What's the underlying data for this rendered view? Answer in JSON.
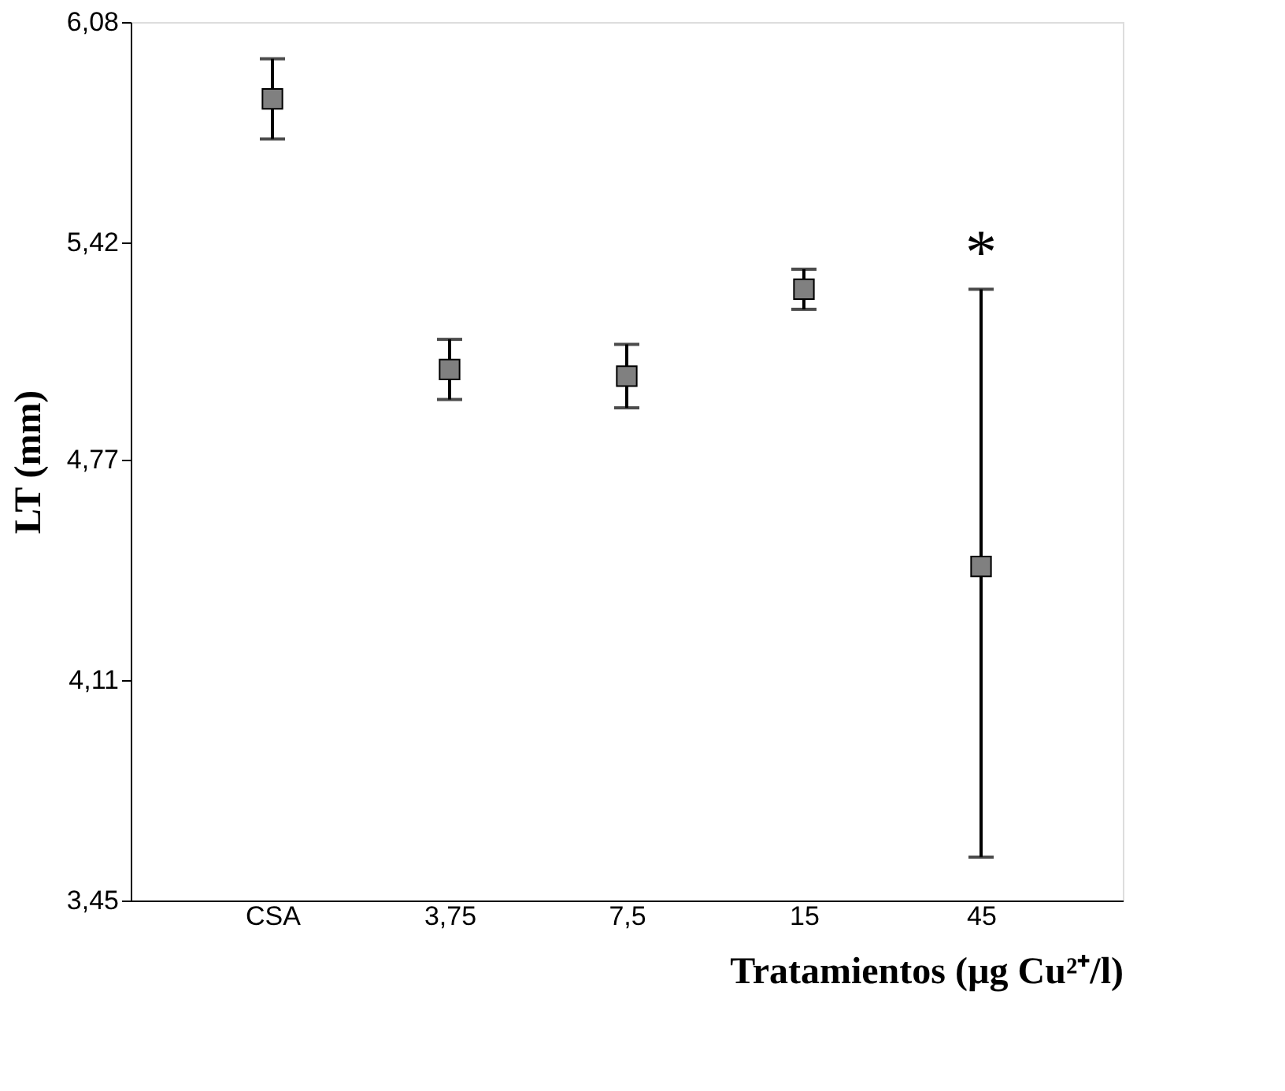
{
  "chart_data": {
    "type": "scatter",
    "xlabel": "Tratamientos (µg Cu²⁺/l)",
    "ylabel": "LT (mm)",
    "categories": [
      "CSA",
      "3,75",
      "7,5",
      "15",
      "45"
    ],
    "series": [
      {
        "color": "#808080",
        "values": [
          5.85,
          5.04,
          5.02,
          5.28,
          4.45
        ],
        "errors": [
          0.12,
          0.09,
          0.095,
          0.06,
          [
            3.58,
            5.28
          ]
        ]
      }
    ],
    "ylim": [
      3.45,
      6.08
    ],
    "yticks": [
      {
        "value": 3.45,
        "label": "3,45"
      },
      {
        "value": 4.11,
        "label": "4,11"
      },
      {
        "value": 4.77,
        "label": "4,77"
      },
      {
        "value": 5.42,
        "label": "5,42"
      },
      {
        "value": 6.08,
        "label": "6,08"
      }
    ],
    "annotations": [
      {
        "text": "*",
        "x": "45",
        "y": 5.28
      }
    ],
    "marker": "square",
    "grid": false
  }
}
